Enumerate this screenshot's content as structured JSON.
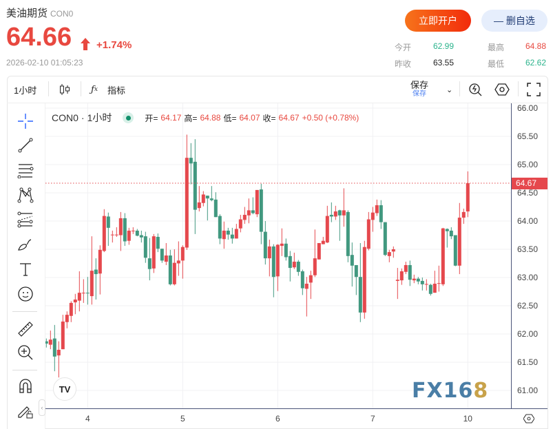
{
  "header": {
    "name": "美油期货",
    "code": "CON0",
    "price": "64.66",
    "change_pct": "+1.74%",
    "datetime": "2026-02-10 01:05:23",
    "open_account_label": "立即开户",
    "remove_watch_label": "— 删自选"
  },
  "stats": {
    "open_label": "今开",
    "open": "62.99",
    "prev_close_label": "昨收",
    "prev_close": "63.55",
    "high_label": "最高",
    "high": "64.88",
    "low_label": "最低",
    "low": "62.62"
  },
  "toolbar": {
    "interval": "1小时",
    "indicators_label": "指标",
    "save_label": "保存",
    "save_sub": "保存"
  },
  "legend": {
    "symbol": "CON0",
    "interval": "1小时",
    "open_label": "开=",
    "open": "64.17",
    "high_label": "高=",
    "high": "64.88",
    "low_label": "低=",
    "low": "64.07",
    "close_label": "收=",
    "close": "64.67",
    "change": "+0.50 (+0.78%)"
  },
  "colors": {
    "up": "#e5484d",
    "down": "#41987f",
    "accent": "#e8483f"
  },
  "watermark": "FX168",
  "chart_data": {
    "type": "candlestick",
    "y_ticks": [
      "66.00",
      "65.50",
      "65.00",
      "64.50",
      "64.00",
      "63.50",
      "63.00",
      "62.50",
      "62.00",
      "61.50",
      "61.00"
    ],
    "ylim": [
      60.7,
      66.1
    ],
    "x_ticks": [
      {
        "label": "4",
        "index": 10
      },
      {
        "label": "5",
        "index": 33
      },
      {
        "label": "6",
        "index": 56
      },
      {
        "label": "7",
        "index": 79
      },
      {
        "label": "10",
        "index": 102
      }
    ],
    "last_price": "64.67",
    "grid": true,
    "ohlc": [
      [
        61.87,
        61.92,
        61.76,
        61.83
      ],
      [
        61.81,
        62.06,
        61.73,
        61.9
      ],
      [
        61.92,
        62.16,
        61.34,
        61.6
      ],
      [
        61.62,
        61.87,
        61.23,
        61.72
      ],
      [
        61.73,
        62.34,
        61.73,
        62.22
      ],
      [
        62.21,
        62.4,
        62.1,
        62.34
      ],
      [
        62.32,
        62.58,
        62.21,
        62.55
      ],
      [
        62.56,
        62.71,
        62.35,
        62.61
      ],
      [
        62.59,
        63.11,
        62.4,
        62.73
      ],
      [
        62.72,
        62.97,
        62.55,
        62.73
      ],
      [
        62.73,
        63.01,
        62.52,
        62.72
      ],
      [
        62.67,
        63.73,
        62.52,
        63.12
      ],
      [
        63.14,
        63.34,
        62.61,
        63.06
      ],
      [
        63.07,
        63.57,
        62.7,
        63.49
      ],
      [
        63.47,
        64.21,
        63.45,
        64.09
      ],
      [
        64.08,
        64.15,
        63.56,
        63.88
      ],
      [
        63.75,
        63.83,
        63.62,
        63.76
      ],
      [
        63.75,
        63.89,
        63.72,
        63.76
      ],
      [
        63.75,
        64.16,
        63.47,
        64.05
      ],
      [
        64.05,
        64.14,
        63.56,
        63.64
      ],
      [
        63.65,
        63.88,
        63.58,
        63.83
      ],
      [
        63.82,
        63.89,
        63.77,
        63.83
      ],
      [
        63.83,
        63.86,
        63.73,
        63.74
      ],
      [
        63.75,
        63.83,
        63.62,
        63.71
      ],
      [
        63.73,
        63.81,
        63.26,
        63.35
      ],
      [
        63.34,
        63.7,
        62.95,
        63.15
      ],
      [
        63.16,
        63.77,
        63.08,
        63.73
      ],
      [
        63.72,
        63.78,
        63.45,
        63.51
      ],
      [
        63.51,
        63.51,
        63.26,
        63.3
      ],
      [
        63.28,
        63.61,
        63.22,
        63.39
      ],
      [
        63.39,
        63.49,
        62.86,
        62.88
      ],
      [
        62.88,
        63.5,
        62.86,
        63.26
      ],
      [
        63.25,
        63.64,
        63.03,
        63.3
      ],
      [
        63.3,
        63.57,
        62.98,
        63.54
      ],
      [
        63.53,
        65.53,
        63.49,
        65.12
      ],
      [
        65.12,
        65.38,
        64.65,
        65.02
      ],
      [
        65.05,
        65.45,
        63.77,
        64.2
      ],
      [
        64.23,
        64.62,
        64.17,
        64.33
      ],
      [
        64.32,
        64.53,
        64.26,
        64.47
      ],
      [
        64.45,
        64.45,
        64.01,
        64.4
      ],
      [
        64.4,
        64.62,
        64.35,
        64.37
      ],
      [
        64.38,
        64.51,
        64.07,
        64.07
      ],
      [
        64.09,
        64.12,
        63.59,
        63.69
      ],
      [
        63.68,
        63.99,
        63.51,
        63.83
      ],
      [
        63.83,
        63.88,
        63.67,
        63.76
      ],
      [
        63.76,
        63.88,
        63.6,
        63.69
      ],
      [
        63.69,
        63.95,
        63.69,
        63.86
      ],
      [
        63.87,
        64.11,
        63.8,
        64.03
      ],
      [
        64.02,
        64.25,
        63.95,
        64.11
      ],
      [
        64.1,
        64.4,
        63.96,
        64.19
      ],
      [
        64.19,
        64.42,
        64.12,
        64.14
      ],
      [
        64.12,
        64.55,
        64.07,
        64.55
      ],
      [
        64.56,
        64.66,
        63.59,
        63.81
      ],
      [
        63.81,
        64.0,
        63.23,
        63.34
      ],
      [
        63.34,
        63.67,
        63.02,
        63.55
      ],
      [
        63.55,
        63.59,
        62.65,
        63.01
      ],
      [
        63.02,
        63.59,
        62.76,
        63.58
      ],
      [
        63.56,
        63.87,
        63.38,
        63.6
      ],
      [
        63.6,
        63.69,
        63.3,
        63.36
      ],
      [
        63.38,
        63.47,
        62.93,
        63.17
      ],
      [
        63.18,
        63.44,
        63.15,
        63.28
      ],
      [
        63.28,
        63.31,
        63.03,
        63.1
      ],
      [
        63.11,
        63.14,
        62.69,
        62.81
      ],
      [
        62.8,
        63.01,
        62.31,
        62.89
      ],
      [
        62.91,
        63.12,
        62.62,
        63.04
      ],
      [
        63.04,
        63.85,
        63.01,
        63.34
      ],
      [
        63.32,
        63.61,
        63.32,
        63.61
      ],
      [
        63.59,
        63.72,
        63.59,
        63.65
      ],
      [
        63.62,
        64.27,
        63.61,
        64.09
      ],
      [
        64.11,
        64.33,
        63.98,
        64.08
      ],
      [
        64.08,
        64.27,
        64.02,
        64.17
      ],
      [
        64.19,
        64.2,
        63.65,
        64.1
      ],
      [
        64.1,
        64.58,
        63.9,
        64.19
      ],
      [
        64.16,
        64.19,
        63.27,
        63.38
      ],
      [
        63.4,
        63.62,
        62.84,
        63.21
      ],
      [
        63.22,
        63.22,
        62.69,
        63.01
      ],
      [
        63.01,
        63.61,
        62.21,
        62.38
      ],
      [
        62.38,
        63.65,
        62.27,
        63.54
      ],
      [
        63.51,
        64.16,
        63.48,
        64.03
      ],
      [
        64.02,
        64.25,
        63.81,
        64.15
      ],
      [
        64.14,
        64.38,
        64.09,
        64.28
      ],
      [
        64.28,
        64.37,
        63.86,
        63.98
      ],
      [
        63.98,
        63.98,
        63.38,
        63.4
      ],
      [
        63.38,
        63.49,
        63.27,
        63.45
      ],
      [
        63.46,
        63.55,
        63.35,
        63.5
      ],
      [
        62.94,
        63.17,
        62.62,
        62.96
      ],
      [
        62.95,
        63.16,
        62.87,
        63.11
      ],
      [
        63.1,
        63.28,
        63.06,
        63.22
      ],
      [
        63.22,
        63.3,
        62.85,
        62.96
      ],
      [
        62.95,
        63.05,
        62.9,
        62.98
      ],
      [
        62.98,
        63.01,
        62.88,
        62.93
      ],
      [
        62.94,
        63.0,
        62.77,
        62.88
      ],
      [
        62.88,
        62.97,
        62.77,
        62.885
      ],
      [
        62.87,
        62.89,
        62.68,
        62.71
      ],
      [
        62.73,
        63.12,
        62.73,
        62.89
      ],
      [
        62.89,
        63.21,
        62.75,
        62.9
      ],
      [
        62.88,
        63.88,
        62.85,
        63.87
      ],
      [
        63.86,
        63.87,
        63.53,
        63.82
      ],
      [
        63.83,
        63.89,
        63.68,
        63.73
      ],
      [
        63.75,
        63.75,
        63.2,
        63.21
      ],
      [
        63.21,
        64.32,
        63.06,
        64.06
      ],
      [
        64.06,
        64.22,
        63.95,
        64.16
      ],
      [
        64.17,
        64.88,
        64.07,
        64.67
      ]
    ]
  }
}
